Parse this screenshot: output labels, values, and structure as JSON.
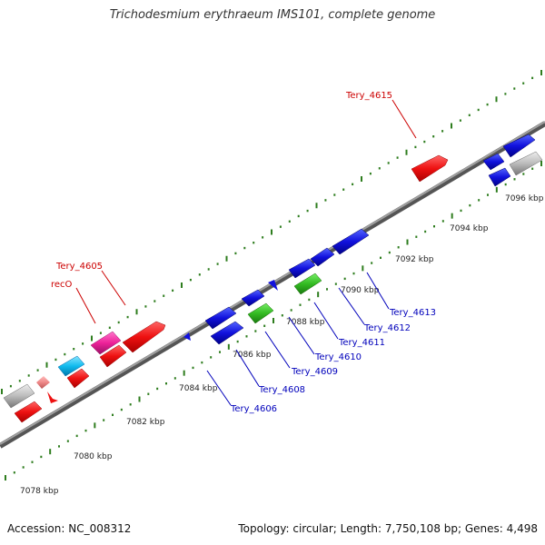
{
  "title": "Trichodesmium erythraeum IMS101, complete genome",
  "footer": {
    "accession": "Accession: NC_008312",
    "summary": "Topology: circular; Length: 7,750,108 bp; Genes: 4,498"
  },
  "colors": {
    "backbone": "#808080",
    "tick": "#2e7d1e",
    "red_label": "#cc0000",
    "blue_label": "#0000bb",
    "red_gene": "#ee1111",
    "blue_gene": "#1111dd",
    "green_gene": "#33bb22",
    "magenta_gene": "#ee2299",
    "cyan_gene": "#11bbee",
    "gray_gene": "#bbbbbb",
    "pink_gene": "#ee8888"
  },
  "scale_labels": [
    "7078 kbp",
    "7080 kbp",
    "7082 kbp",
    "7084 kbp",
    "7086 kbp",
    "7088 kbp",
    "7090 kbp",
    "7092 kbp",
    "7094 kbp",
    "7096 kbp"
  ],
  "gene_labels": {
    "top": [
      {
        "name": "recO",
        "color": "red"
      },
      {
        "name": "Tery_4605",
        "color": "red"
      },
      {
        "name": "Tery_4615",
        "color": "red"
      }
    ],
    "bottom": [
      {
        "name": "Tery_4606",
        "color": "blue"
      },
      {
        "name": "Tery_4608",
        "color": "blue"
      },
      {
        "name": "Tery_4609",
        "color": "blue"
      },
      {
        "name": "Tery_4610",
        "color": "blue"
      },
      {
        "name": "Tery_4611",
        "color": "blue"
      },
      {
        "name": "Tery_4612",
        "color": "blue"
      },
      {
        "name": "Tery_4613",
        "color": "blue"
      }
    ]
  }
}
